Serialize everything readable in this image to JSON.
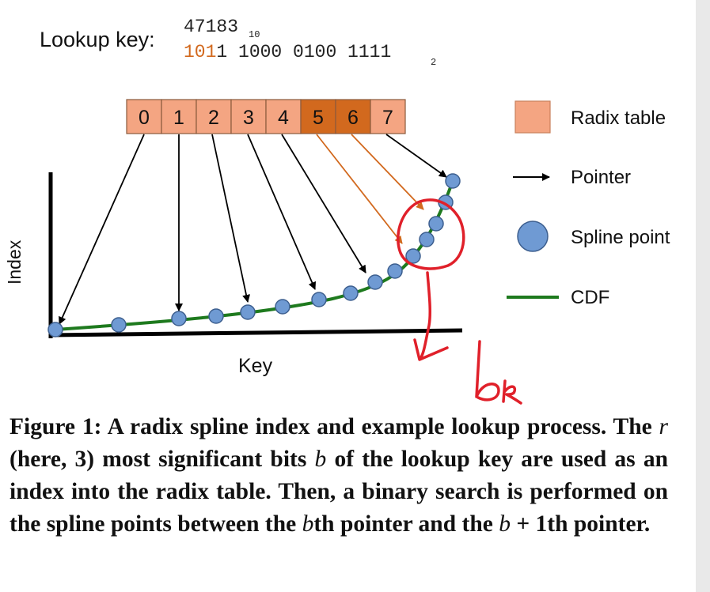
{
  "lookup": {
    "label": "Lookup key:",
    "decimal": "47183",
    "decimal_base": "10",
    "binary_highlight": "101",
    "binary_rest": "1 1000 0100 1111",
    "binary_base": "2"
  },
  "radix_table": {
    "cells": [
      "0",
      "1",
      "2",
      "3",
      "4",
      "5",
      "6",
      "7"
    ],
    "highlighted": [
      5,
      6
    ],
    "color": "#f4a582",
    "highlight_color": "#d2691e"
  },
  "axes": {
    "y_label": "Index",
    "x_label": "Key"
  },
  "legend": {
    "radix_table": "Radix table",
    "pointer": "Pointer",
    "spline_point": "Spline point",
    "cdf": "CDF"
  },
  "colors": {
    "cdf": "#1e7a1e",
    "spline_point": "#6f9ad3",
    "annotation": "#e0202a",
    "orange_pointer": "#d2691e"
  },
  "annotation": {
    "handwritten": "b",
    "handwritten_sub": "k"
  },
  "caption": {
    "p1": "Figure 1: A radix spline index and example lookup process. The ",
    "r": "r",
    "p2": " (here, 3) most significant bits ",
    "b1": "b",
    "p3": " of the lookup key are used as an index into the radix table. Then, a binary search is performed on the spline points between the ",
    "b2": "b",
    "p4": "th pointer and the ",
    "b3": "b",
    "p5": " + 1th pointer."
  }
}
